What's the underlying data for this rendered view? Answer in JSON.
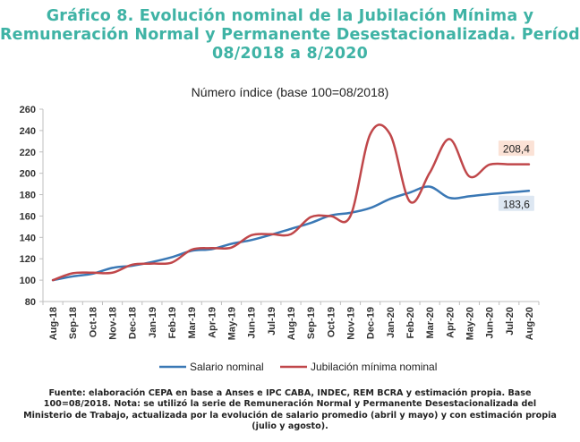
{
  "title_lines": [
    "Gráfico 8. Evolución nominal de la Jubilación Mínima y",
    "Remuneración Normal y Permanente Desestacionalizada. Período",
    "08/2018 a 8/2020"
  ],
  "footnote_lines": [
    "Fuente: elaboración CEPA en base a Anses e IPC CABA, INDEC, REM BCRA y estimación propia. Base",
    "100=08/2018. Nota: se utilizó la serie de Remuneración Normal y Permanente Desestacionalizada del",
    "Ministerio de Trabajo, actualizada por la evolución de salario promedio (abril y mayo) y con estimación propia",
    "(julio y agosto)."
  ],
  "chart_data": {
    "type": "line",
    "title": "Número índice (base 100=08/2018)",
    "categories": [
      "Aug-18",
      "Sep-18",
      "Oct-18",
      "Nov-18",
      "Dec-18",
      "Jan-19",
      "Feb-19",
      "Mar-19",
      "Apr-19",
      "May-19",
      "Jun-19",
      "Jul-19",
      "Aug-19",
      "Sep-19",
      "Oct-19",
      "Nov-19",
      "Dec-19",
      "Jan-20",
      "Feb-20",
      "Mar-20",
      "Apr-20",
      "May-20",
      "Jun-20",
      "Jul-20",
      "Aug-20"
    ],
    "ylim": [
      80,
      260
    ],
    "yticks": [
      80,
      100,
      120,
      140,
      160,
      180,
      200,
      220,
      240,
      260
    ],
    "grid": false,
    "legend_position": "bottom",
    "series": [
      {
        "name": "Salario nominal",
        "color": "#3a78b5",
        "values": [
          100,
          103.5,
          106,
          111.5,
          113.5,
          117,
          121.5,
          127.5,
          129,
          134,
          137.5,
          142.5,
          148,
          153.5,
          160.5,
          163,
          167.5,
          176,
          182,
          187.5,
          177,
          178.5,
          180.5,
          182,
          183.6
        ],
        "end_label": "183,6"
      },
      {
        "name": "Jubilación mínima nominal",
        "color": "#c0474a",
        "values": [
          100,
          106.5,
          107,
          107,
          114.5,
          115.5,
          116.5,
          128.5,
          130,
          130.5,
          142,
          143,
          143,
          159,
          160,
          160,
          236.5,
          236.5,
          173.5,
          200.5,
          232,
          197,
          208,
          208.4,
          208.4
        ],
        "end_label": "208,4"
      }
    ]
  }
}
